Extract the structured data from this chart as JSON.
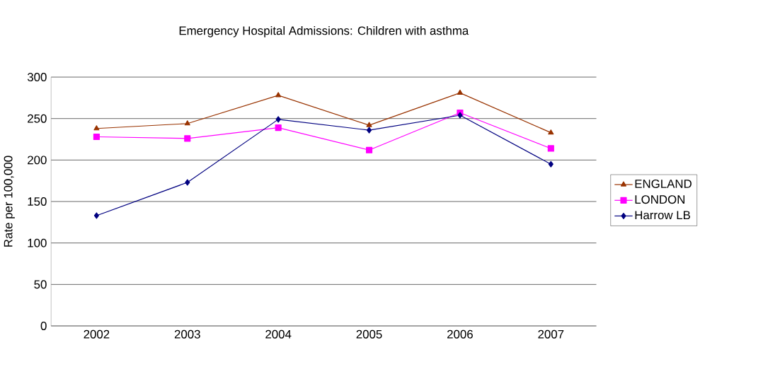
{
  "chart_data": {
    "type": "line",
    "title": "Emergency Hospital Admissions: Children with asthma",
    "ylabel": "Rate per 100,000",
    "categories": [
      "2002",
      "2003",
      "2004",
      "2005",
      "2006",
      "2007"
    ],
    "series": [
      {
        "name": "ENGLAND",
        "color": "#993300",
        "marker": "triangle",
        "values": [
          238,
          244,
          278,
          242,
          281,
          233
        ]
      },
      {
        "name": "LONDON",
        "color": "#ff00ff",
        "marker": "square",
        "values": [
          228,
          226,
          239,
          212,
          257,
          214
        ]
      },
      {
        "name": "Harrow LB",
        "color": "#000080",
        "marker": "diamond",
        "values": [
          133,
          173,
          249,
          236,
          254,
          195
        ]
      }
    ],
    "ylim": [
      0,
      300
    ],
    "yticks": [
      0,
      50,
      100,
      150,
      200,
      250,
      300
    ],
    "grid": "y",
    "legend": "right",
    "line_style": "solid"
  }
}
